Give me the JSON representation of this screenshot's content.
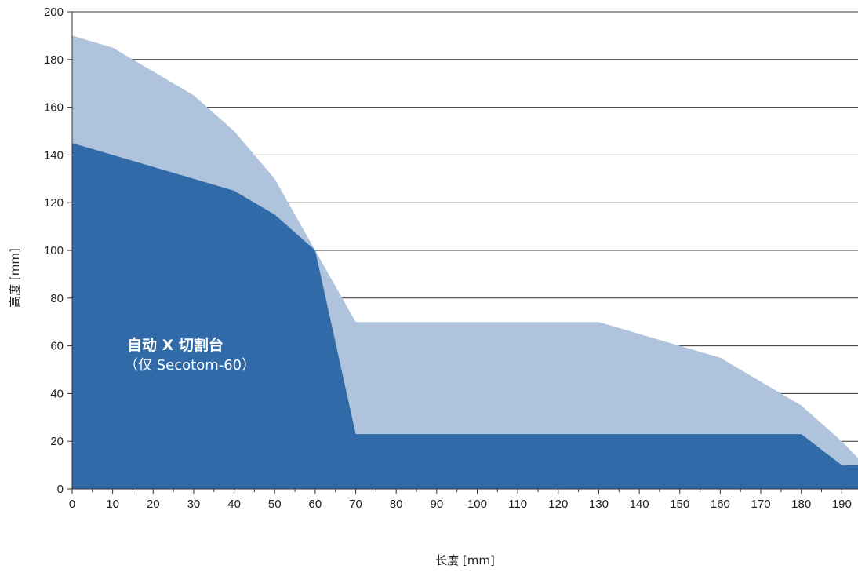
{
  "chart_data": {
    "type": "area",
    "xlabel": "长度 [mm]",
    "ylabel": "高度 [mm]",
    "xlim": [
      0,
      194
    ],
    "ylim": [
      0,
      200
    ],
    "x_ticks": [
      0,
      10,
      20,
      30,
      40,
      50,
      60,
      70,
      80,
      90,
      100,
      110,
      120,
      130,
      140,
      150,
      160,
      170,
      180,
      190
    ],
    "y_ticks": [
      0,
      20,
      40,
      60,
      80,
      100,
      120,
      140,
      160,
      180,
      200
    ],
    "grid": "horizontal",
    "annotation": {
      "line1": "自动 X 切割台",
      "line2": "（仅 Secotom-60）"
    },
    "series": [
      {
        "color": "#afc4dc",
        "points": [
          [
            0,
            190
          ],
          [
            10,
            185
          ],
          [
            20,
            175
          ],
          [
            30,
            165
          ],
          [
            40,
            150
          ],
          [
            50,
            130
          ],
          [
            60,
            100
          ],
          [
            70,
            70
          ],
          [
            80,
            70
          ],
          [
            90,
            70
          ],
          [
            100,
            70
          ],
          [
            110,
            70
          ],
          [
            120,
            70
          ],
          [
            130,
            70
          ],
          [
            140,
            65
          ],
          [
            150,
            60
          ],
          [
            160,
            55
          ],
          [
            170,
            45
          ],
          [
            180,
            35
          ],
          [
            190,
            20
          ],
          [
            194,
            13
          ]
        ]
      },
      {
        "color": "#306aa8",
        "points": [
          [
            0,
            145
          ],
          [
            10,
            140
          ],
          [
            20,
            135
          ],
          [
            30,
            130
          ],
          [
            40,
            125
          ],
          [
            50,
            115
          ],
          [
            60,
            100
          ],
          [
            70,
            23
          ],
          [
            80,
            23
          ],
          [
            90,
            23
          ],
          [
            100,
            23
          ],
          [
            110,
            23
          ],
          [
            120,
            23
          ],
          [
            130,
            23
          ],
          [
            140,
            23
          ],
          [
            150,
            23
          ],
          [
            160,
            23
          ],
          [
            170,
            23
          ],
          [
            180,
            23
          ],
          [
            190,
            10
          ],
          [
            194,
            10
          ]
        ]
      }
    ]
  }
}
